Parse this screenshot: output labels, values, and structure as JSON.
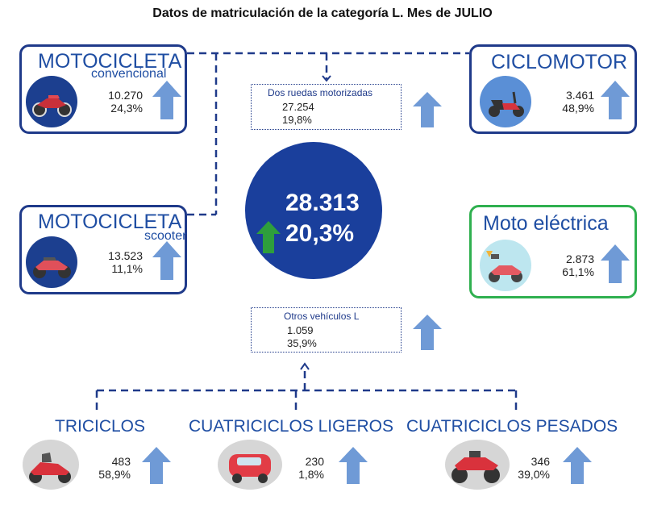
{
  "title": "Datos de matriculación de la categoría L. Mes de JULIO",
  "total": {
    "value": "28.313",
    "pct": "20,3%",
    "arrow_icon": "up-arrow-green-icon"
  },
  "colors": {
    "primary": "#1f3a8a",
    "accent_text": "#1f4ea3",
    "arrow_blue": "#6f9ad6",
    "arrow_green": "#2e9e3c",
    "electric_border": "#2fb04f",
    "circle": "#1a3f9c"
  },
  "moto_convencional": {
    "title": "MOTOCICLETA",
    "subtitle": "convencional",
    "value": "10.270",
    "pct": "24,3%",
    "icon": "motorcycle-icon"
  },
  "moto_scooter": {
    "title": "MOTOCICLETA",
    "subtitle": "scooter",
    "value": "13.523",
    "pct": "11,1%",
    "icon": "scooter-icon"
  },
  "ciclomotor": {
    "title": "CICLOMOTOR",
    "value": "3.461",
    "pct": "48,9%",
    "icon": "moped-icon"
  },
  "moto_electrica": {
    "title": "Moto eléctrica",
    "value": "2.873",
    "pct": "61,1%",
    "icon": "electric-scooter-icon"
  },
  "dos_ruedas": {
    "label": "Dos ruedas motorizadas",
    "value": "27.254",
    "pct": "19,8%"
  },
  "otros": {
    "label": "Otros vehículos L",
    "value": "1.059",
    "pct": "35,9%"
  },
  "triciclos": {
    "title": "TRICICLOS",
    "value": "483",
    "pct": "58,9%",
    "icon": "tricycle-icon"
  },
  "cuatriciclos_ligeros": {
    "title": "CUATRICICLOS LIGEROS",
    "value": "230",
    "pct": "1,8%",
    "icon": "microcar-icon"
  },
  "cuatriciclos_pesados": {
    "title": "CUATRICICLOS PESADOS",
    "value": "346",
    "pct": "39,0%",
    "icon": "quad-icon"
  }
}
